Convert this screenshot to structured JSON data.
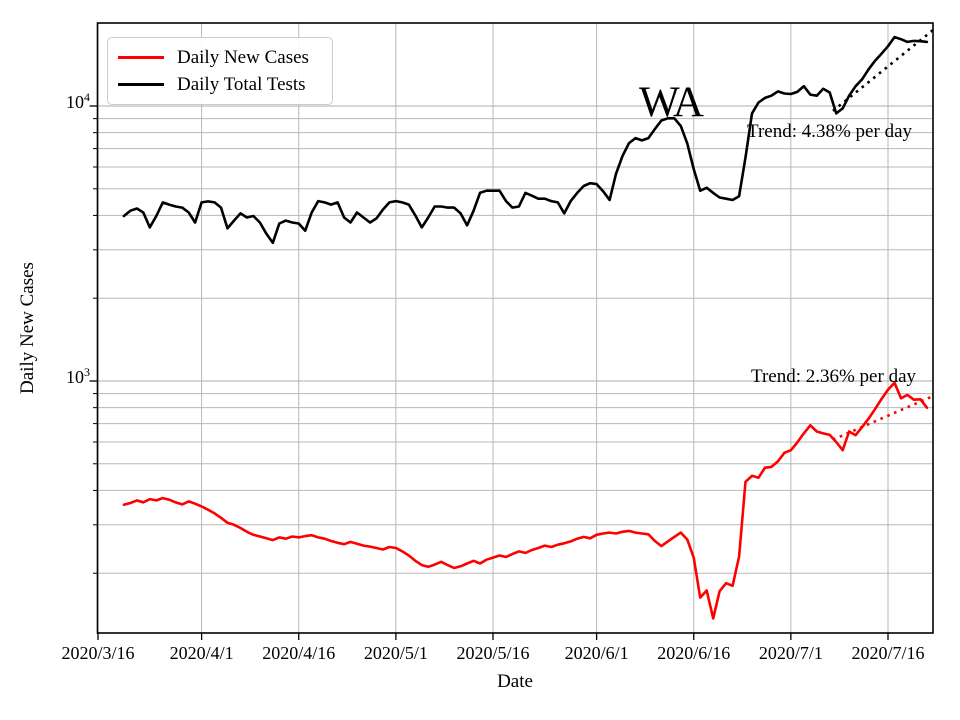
{
  "figure": {
    "state_label": "WA",
    "x_axis_label": "Date",
    "y_axis_label": "Daily New Cases",
    "trend_tests_label": "Trend: 4.38% per day",
    "trend_cases_label": "Trend: 2.36% per day"
  },
  "legend": {
    "items": [
      {
        "label": "Daily New Cases",
        "color": "#ff0000"
      },
      {
        "label": "Daily Total Tests",
        "color": "#000000"
      }
    ]
  },
  "chart_data": {
    "type": "line",
    "title": "",
    "xlabel": "Date",
    "ylabel": "Daily New Cases",
    "y_scale": "log",
    "ylim": [
      120,
      20000
    ],
    "grid": "both",
    "grid_color": "#b8b8b8",
    "x_start_date": "2020/3/16",
    "x_axis": {
      "ticks": [
        {
          "day": 0,
          "label": "2020/3/16"
        },
        {
          "day": 16,
          "label": "2020/4/1"
        },
        {
          "day": 31,
          "label": "2020/4/16"
        },
        {
          "day": 46,
          "label": "2020/5/1"
        },
        {
          "day": 61,
          "label": "2020/5/16"
        },
        {
          "day": 77,
          "label": "2020/6/1"
        },
        {
          "day": 92,
          "label": "2020/6/16"
        },
        {
          "day": 107,
          "label": "2020/7/1"
        },
        {
          "day": 122,
          "label": "2020/7/16"
        }
      ]
    },
    "y_axis": {
      "ticks": [
        {
          "base": "10",
          "exp": "4",
          "value": 10000
        },
        {
          "base": "10",
          "exp": "3",
          "value": 1000
        }
      ],
      "minor_gridline_values": [
        200,
        300,
        400,
        500,
        600,
        700,
        800,
        900,
        2000,
        3000,
        4000,
        5000,
        6000,
        7000,
        8000,
        9000
      ]
    },
    "series": [
      {
        "name": "Daily New Cases",
        "color": "#ff0000",
        "start_day": 4,
        "start_date": "2020/3/20",
        "values": [
          355,
          360,
          368,
          362,
          372,
          368,
          375,
          370,
          362,
          356,
          365,
          358,
          350,
          340,
          330,
          318,
          305,
          300,
          292,
          283,
          276,
          272,
          268,
          264,
          270,
          267,
          272,
          270,
          273,
          275,
          270,
          267,
          262,
          258,
          255,
          260,
          256,
          252,
          250,
          247,
          244,
          249,
          247,
          240,
          232,
          222,
          214,
          211,
          215,
          220,
          214,
          209,
          212,
          217,
          222,
          217,
          224,
          228,
          232,
          229,
          235,
          240,
          237,
          243,
          247,
          252,
          249,
          254,
          257,
          261,
          267,
          271,
          268,
          276,
          279,
          281,
          279,
          283,
          285,
          281,
          279,
          277,
          262,
          251,
          261,
          271,
          281,
          265,
          228,
          163,
          173,
          137,
          172,
          184,
          180,
          230,
          430,
          452,
          445,
          484,
          487,
          510,
          548,
          560,
          598,
          645,
          690,
          655,
          645,
          637,
          600,
          560,
          655,
          635,
          680,
          730,
          790,
          860,
          930,
          985,
          865,
          890,
          855,
          858,
          800
        ]
      },
      {
        "name": "Daily Total Tests",
        "color": "#000000",
        "start_day": 4,
        "start_date": "2020/3/20",
        "values": [
          3980,
          4160,
          4240,
          4100,
          3620,
          3980,
          4460,
          4380,
          4310,
          4270,
          4100,
          3770,
          4460,
          4500,
          4460,
          4270,
          3590,
          3830,
          4070,
          3930,
          3980,
          3770,
          3430,
          3180,
          3740,
          3830,
          3770,
          3740,
          3520,
          4100,
          4510,
          4460,
          4380,
          4460,
          3930,
          3770,
          4100,
          3930,
          3770,
          3900,
          4200,
          4460,
          4510,
          4460,
          4380,
          4000,
          3620,
          3930,
          4310,
          4310,
          4270,
          4270,
          4070,
          3680,
          4160,
          4830,
          4920,
          4920,
          4920,
          4510,
          4270,
          4310,
          4830,
          4720,
          4600,
          4600,
          4510,
          4460,
          4070,
          4510,
          4830,
          5120,
          5240,
          5200,
          4900,
          4550,
          5670,
          6580,
          7330,
          7640,
          7500,
          7640,
          8250,
          8860,
          9020,
          9020,
          8460,
          7300,
          5900,
          4920,
          5040,
          4830,
          4650,
          4600,
          4550,
          4700,
          6500,
          9400,
          10300,
          10700,
          10900,
          11300,
          11100,
          11060,
          11250,
          11800,
          11000,
          10900,
          11550,
          11200,
          9400,
          9800,
          10900,
          11800,
          12500,
          13600,
          14600,
          15500,
          16500,
          17800,
          17500,
          17100,
          17250,
          17200,
          17100
        ]
      }
    ],
    "trend_lines": [
      {
        "name": "tests-trend",
        "label": "Trend: 4.38% per day",
        "color": "#000000",
        "rate_pct_per_day": 4.38,
        "start_day": 113.5,
        "end_day": 129,
        "start_value": 9600
      },
      {
        "name": "cases-trend",
        "label": "Trend: 2.36% per day",
        "color": "#ff0000",
        "rate_pct_per_day": 2.36,
        "start_day": 113.5,
        "end_day": 129,
        "start_value": 612
      }
    ],
    "annotations": [
      {
        "text": "WA",
        "approx_day": 89,
        "approx_value": 9500
      },
      {
        "text": "Trend: 4.38% per day",
        "anchor": "tests-trend"
      },
      {
        "text": "Trend: 2.36% per day",
        "anchor": "cases-trend"
      }
    ]
  }
}
